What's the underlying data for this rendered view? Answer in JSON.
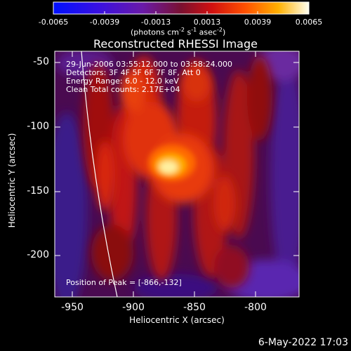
{
  "colorbar": {
    "tick_labels": [
      "-0.0065",
      "-0.0039",
      "-0.0013",
      "0.0013",
      "0.0039",
      "0.0065"
    ],
    "unit_label": "(photons cm",
    "unit_sup1": "-2",
    "unit_mid": " s",
    "unit_sup2": "-1",
    "unit_end": " asec",
    "unit_sup3": "-2",
    "unit_close": ")"
  },
  "plot": {
    "title": "Reconstructed RHESSI Image",
    "info_lines": [
      "29-Jun-2006 03:55:12.000 to 03:58:24.000",
      "Detectors: 3F 4F 5F 6F 7F 8F, Att 0",
      "Energy Range: 6.0 - 12.0 keV",
      "Clean    Total counts: 2.17E+04"
    ],
    "peak_label": "Position of Peak = [-866,-132]",
    "xlabel": "Heliocentric X (arcsec)",
    "ylabel": "Heliocentric Y (arcsec)",
    "x_ticks": [
      "-950",
      "-900",
      "-850",
      "-800"
    ],
    "y_ticks": [
      "-50",
      "-100",
      "-150",
      "-200"
    ],
    "x_range": [
      -963,
      -772
    ],
    "y_range": [
      -233,
      -43
    ]
  },
  "timestamp": "6-May-2022 17:03"
}
